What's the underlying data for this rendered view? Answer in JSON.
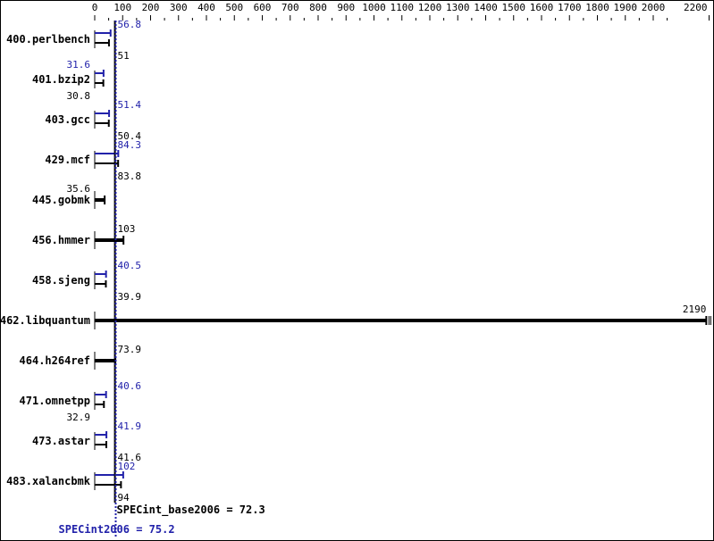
{
  "chart_data": {
    "type": "bar",
    "orientation": "horizontal",
    "xlim": [
      0,
      2200
    ],
    "xticks": [
      0,
      100,
      200,
      300,
      400,
      500,
      600,
      700,
      800,
      900,
      1000,
      1100,
      1200,
      1300,
      1400,
      1500,
      1600,
      1700,
      1800,
      1900,
      2000,
      2200
    ],
    "categories": [
      "400.perlbench",
      "401.bzip2",
      "403.gcc",
      "429.mcf",
      "445.gobmk",
      "456.hmmer",
      "458.sjeng",
      "462.libquantum",
      "464.h264ref",
      "471.omnetpp",
      "473.astar",
      "483.xalancbmk"
    ],
    "series": [
      {
        "key": "peak",
        "values": [
          56.8,
          31.6,
          51.4,
          84.3,
          null,
          null,
          40.5,
          null,
          null,
          40.6,
          41.9,
          102
        ]
      },
      {
        "key": "base",
        "values": [
          51.0,
          30.8,
          50.4,
          83.8,
          35.6,
          103,
          39.9,
          2190,
          73.9,
          32.9,
          41.6,
          94.0
        ]
      }
    ],
    "base_mean": {
      "label": "SPECint_base2006 = 72.3",
      "value": 72.3
    },
    "peak_mean": {
      "label": "SPECint2006 = 75.2",
      "value": 75.2
    },
    "colors": {
      "peak": "#2222aa",
      "base": "#000000"
    },
    "grid": false
  }
}
